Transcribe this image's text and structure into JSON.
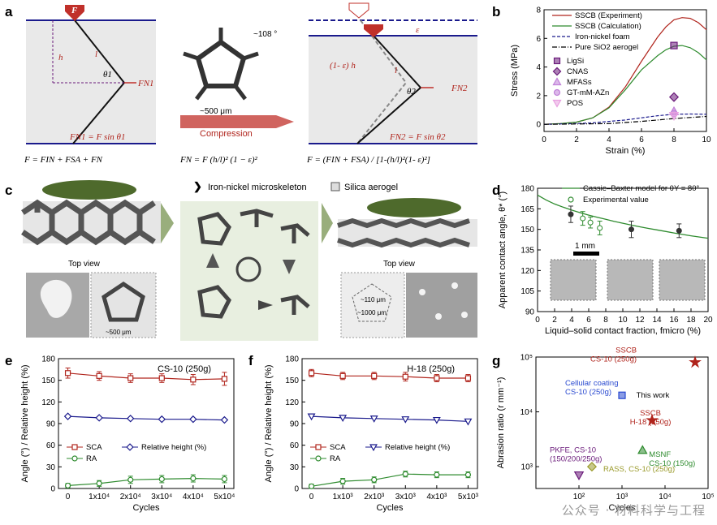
{
  "panels": {
    "a": {
      "letter": "a",
      "force_label": "F",
      "label_h": "h",
      "label_l": "l",
      "label_theta1": "θ1",
      "label_fn1": "FN1",
      "formula_fn1": "FN1 = F sin θ1",
      "eq_left": "F = FIN + FSA + FN",
      "micro_angle": "~108 °",
      "micro_size": "~500 μm",
      "compression": "Compression",
      "eq_mid": "FN = F (h/l)² (1 − ε)²",
      "label_eps": "ε",
      "label_1eh": "(1- ε) h",
      "label_l2": "l",
      "label_theta2": "θ2",
      "label_fn2": "FN2",
      "formula_fn2": "FN2 = F sin θ2",
      "eq_right": "F = (FIN + FSA) / [1-(h/l)²(1- ε)²]"
    },
    "c": {
      "letter": "c",
      "legend_skeleton": "Iron-nickel microskeleton",
      "legend_aerogel": "Silica aerogel",
      "topview_left": "Top view",
      "topview_right": "Top view",
      "dim_500": "~500 μm",
      "dim_110": "~110 μm",
      "dim_1000": "~1000 μm"
    },
    "d_extra": {
      "scale_bar": "1 mm"
    },
    "g_extra": {
      "this_work": "This work"
    }
  },
  "colors": {
    "dark_red": "#b0241c",
    "navy": "#1a1a8c",
    "green": "#2e8b2e",
    "purple": "#6a1a7a",
    "lavender": "#c080d8",
    "pink": "#e8a0e0",
    "olive": "#9a9a2a",
    "blue": "#2a4ad0"
  },
  "watermark": "公众号 · 材料科学与工程",
  "chart_data": [
    {
      "id": "b",
      "letter": "b",
      "type": "line",
      "xlabel": "Strain (%)",
      "ylabel": "Stress (MPa)",
      "xlim": [
        0,
        10
      ],
      "ylim": [
        -0.5,
        8
      ],
      "xticks": [
        0,
        2,
        4,
        6,
        8,
        10
      ],
      "yticks": [
        0,
        2,
        4,
        6,
        8
      ],
      "legend": "top-left",
      "series": [
        {
          "name": "SSCB (Experiment)",
          "color": "#b0241c",
          "style": "solid",
          "x": [
            0,
            1,
            2,
            3,
            4,
            5,
            6,
            7,
            7.5,
            8,
            8.5,
            9,
            9.5,
            10
          ],
          "y": [
            0,
            0.05,
            0.15,
            0.45,
            1.2,
            2.6,
            4.4,
            6.1,
            6.8,
            7.3,
            7.45,
            7.4,
            7.1,
            6.6
          ]
        },
        {
          "name": "SSCB (Calculation)",
          "color": "#2e8b2e",
          "style": "solid",
          "x": [
            0,
            1,
            2,
            3,
            4,
            5,
            6,
            7,
            7.5,
            8,
            8.5,
            9,
            9.5,
            10
          ],
          "y": [
            0,
            0.05,
            0.15,
            0.45,
            1.15,
            2.4,
            3.8,
            4.8,
            5.2,
            5.45,
            5.5,
            5.35,
            5.0,
            4.5
          ]
        },
        {
          "name": "Iron-nickel foam",
          "color": "#1a1a8c",
          "style": "dash",
          "x": [
            0,
            2,
            3,
            4,
            5,
            6,
            7,
            8,
            9,
            10
          ],
          "y": [
            0,
            0.05,
            0.1,
            0.2,
            0.3,
            0.45,
            0.6,
            0.7,
            0.72,
            0.7
          ]
        },
        {
          "name": "Pure SiO2 aerogel",
          "color": "#000000",
          "style": "dashdot",
          "x": [
            0,
            2,
            4,
            6,
            8,
            10
          ],
          "y": [
            0,
            0.02,
            0.05,
            0.2,
            0.4,
            0.55
          ]
        }
      ],
      "markers": [
        {
          "name": "LigSi",
          "x": 8,
          "y": 5.5,
          "shape": "square-half",
          "color": "#6a1a7a"
        },
        {
          "name": "CNAS",
          "x": 8,
          "y": 1.9,
          "shape": "diamond-half",
          "color": "#6a1a7a"
        },
        {
          "name": "MFASs",
          "x": 8,
          "y": 0.9,
          "shape": "triangle-half",
          "color": "#c080d8"
        },
        {
          "name": "GT-mM-AZn",
          "x": 8,
          "y": 0.75,
          "shape": "circle-half",
          "color": "#c080d8"
        },
        {
          "name": "POS",
          "x": 8,
          "y": 0.6,
          "shape": "tri-down-half",
          "color": "#e8a0e0"
        }
      ]
    },
    {
      "id": "d",
      "letter": "d",
      "type": "scatter",
      "xlabel": "Liquid–solid contact fraction, fmicro (%)",
      "ylabel": "Apparent contact angle, θ* (°)",
      "xlim": [
        0,
        20
      ],
      "ylim": [
        90,
        180
      ],
      "xticks": [
        0,
        2,
        4,
        6,
        8,
        10,
        12,
        14,
        16,
        18,
        20
      ],
      "yticks": [
        90,
        105,
        120,
        135,
        150,
        165,
        180
      ],
      "legend": "top-right",
      "model": {
        "name": "Cassie–Baxter model for θY = 80°",
        "color": "#2e8b2e",
        "x": [
          0,
          1,
          2,
          3,
          4,
          5,
          6,
          7,
          8,
          9,
          10,
          11,
          12,
          13,
          14,
          15,
          16,
          17,
          18,
          19,
          20
        ],
        "y": [
          175,
          171.5,
          168.5,
          166.2,
          164.1,
          162.2,
          160.4,
          158.8,
          157.3,
          155.8,
          154.5,
          153.1,
          151.9,
          150.7,
          149.6,
          148.5,
          147.4,
          146.3,
          145.3,
          144.4,
          143.5
        ]
      },
      "experimental": {
        "name": "Experimental value",
        "color": "#2e8b2e",
        "x": [
          5.3,
          6.2,
          7.3
        ],
        "y": [
          158,
          155,
          151
        ],
        "err": [
          5,
          4,
          5
        ]
      },
      "reference_points": {
        "color": "#333333",
        "x": [
          3.9,
          11.0,
          16.6
        ],
        "y": [
          161,
          150,
          149
        ],
        "err": [
          6,
          6,
          5
        ]
      }
    },
    {
      "id": "e",
      "letter": "e",
      "type": "line",
      "title": "CS-10 (250g)",
      "xlabel": "Cycles",
      "ylabel": "Angle (°) / Relative height (%)",
      "xlim": [
        -0.3,
        5.3
      ],
      "ylim": [
        0,
        180
      ],
      "xticks": [
        0,
        1,
        2,
        3,
        4,
        5
      ],
      "xticklabels": [
        "0",
        "1x10⁴",
        "2x10⁴",
        "3x10⁴",
        "4x10⁴",
        "5x10⁴"
      ],
      "yticks": [
        0,
        30,
        60,
        90,
        120,
        150,
        180
      ],
      "x": [
        0,
        1,
        2,
        3,
        4,
        5
      ],
      "series": [
        {
          "name": "SCA",
          "color": "#b0241c",
          "marker": "square",
          "y": [
            160,
            156,
            153,
            153,
            151,
            152
          ],
          "err": [
            7,
            6,
            6,
            6,
            7,
            9
          ]
        },
        {
          "name": "Relative height (%)",
          "color": "#1a1a8c",
          "marker": "diamond",
          "y": [
            100,
            98,
            97,
            96,
            96,
            95
          ],
          "err": [
            0,
            0,
            0,
            0,
            0,
            0
          ]
        },
        {
          "name": "RA",
          "color": "#2e8b2e",
          "marker": "circle",
          "y": [
            4,
            7,
            12,
            13,
            14,
            13
          ],
          "err": [
            3,
            4,
            5,
            5,
            5,
            5
          ]
        }
      ]
    },
    {
      "id": "f",
      "letter": "f",
      "type": "line",
      "title": "H-18 (250g)",
      "xlabel": "Cycles",
      "ylabel": "Angle (°) / Relative height (%)",
      "xlim": [
        -0.3,
        5.3
      ],
      "ylim": [
        0,
        180
      ],
      "xticks": [
        0,
        1,
        2,
        3,
        4,
        5
      ],
      "xticklabels": [
        "0",
        "1x10³",
        "2x10³",
        "3x10³",
        "4x10³",
        "5x10³"
      ],
      "yticks": [
        0,
        30,
        60,
        90,
        120,
        150,
        180
      ],
      "x": [
        0,
        1,
        2,
        3,
        4,
        5
      ],
      "series": [
        {
          "name": "SCA",
          "color": "#b0241c",
          "marker": "square",
          "y": [
            160,
            156,
            156,
            155,
            153,
            153
          ],
          "err": [
            5,
            5,
            5,
            6,
            5,
            5
          ]
        },
        {
          "name": "Relative height (%)",
          "color": "#1a1a8c",
          "marker": "tri-down",
          "y": [
            100,
            98,
            97,
            96,
            95,
            93
          ],
          "err": [
            0,
            0,
            0,
            0,
            0,
            0
          ]
        },
        {
          "name": "RA",
          "color": "#2e8b2e",
          "marker": "circle",
          "y": [
            3,
            10,
            12,
            20,
            19,
            19
          ],
          "err": [
            3,
            4,
            4,
            4,
            4,
            4
          ]
        }
      ]
    },
    {
      "id": "g",
      "letter": "g",
      "type": "scatter",
      "xlabel": "Cycles",
      "ylabel": "Abrasion ratio (r mm⁻¹)",
      "xscale": "log",
      "yscale": "log",
      "xlim": [
        10,
        100000
      ],
      "ylim": [
        400,
        100000
      ],
      "xticks": [
        100,
        1000,
        10000,
        100000
      ],
      "xticklabels": [
        "10²",
        "10³",
        "10⁴",
        "10⁵"
      ],
      "yticks": [
        1000,
        10000,
        100000
      ],
      "yticklabels": [
        "10³",
        "10⁴",
        "10⁵"
      ],
      "points": [
        {
          "label": "SSCB\nCS-10 (250g)",
          "x": 50000,
          "y": 80000,
          "shape": "star",
          "color": "#b0241c"
        },
        {
          "label": "SSCB\nH-18 (250g)",
          "x": 5000,
          "y": 7000,
          "shape": "star",
          "color": "#b0241c"
        },
        {
          "label": "Cellular coating\nCS-10 (250g)",
          "x": 1000,
          "y": 20000,
          "shape": "square-half",
          "color": "#2a4ad0"
        },
        {
          "label": "PKFE, CS-10\n(150/200/250g)",
          "x": 100,
          "y": 700,
          "shape": "tri-down-half",
          "color": "#6a1a7a"
        },
        {
          "label": "MSNF\nCS-10 (150g)",
          "x": 3000,
          "y": 2000,
          "shape": "triangle-half",
          "color": "#2e8b2e"
        },
        {
          "label": "RASS, CS-10 (250g)",
          "x": 200,
          "y": 1000,
          "shape": "diamond-half",
          "color": "#9a9a2a"
        }
      ]
    }
  ]
}
